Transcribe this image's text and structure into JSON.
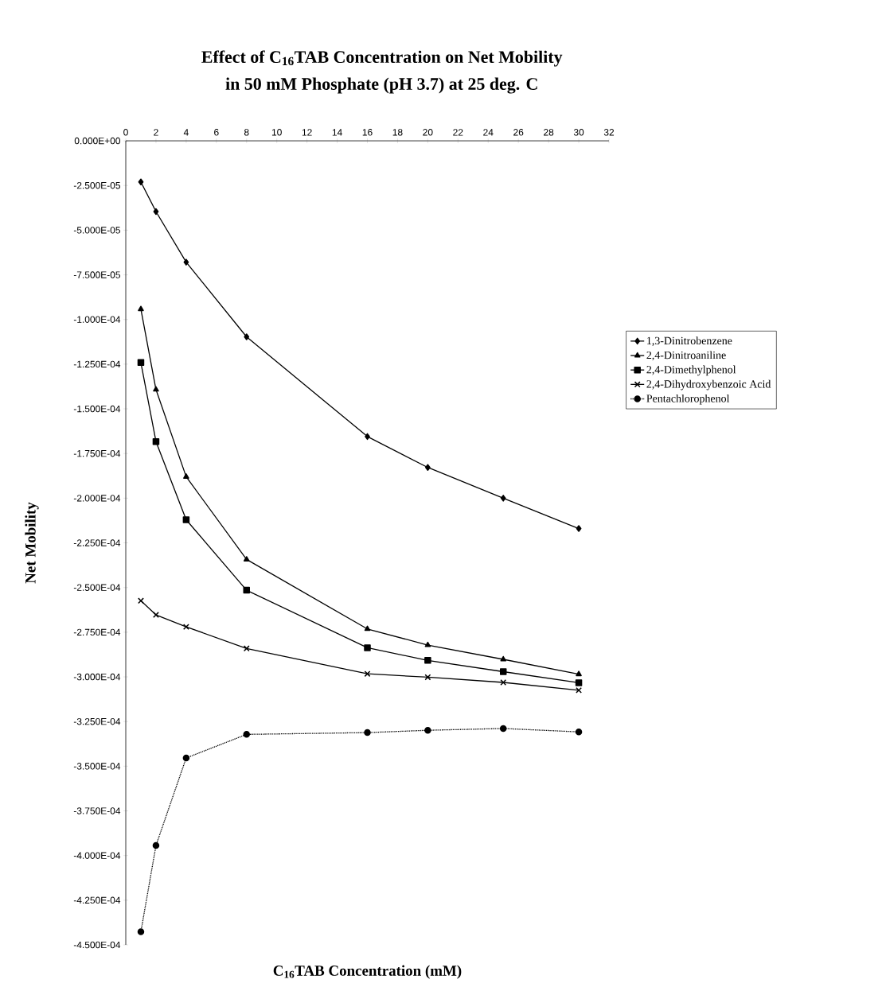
{
  "chart_data": {
    "type": "line",
    "title": "Effect of C$_{16}$TAB Concentration on Net Mobility",
    "subtitle": "in 50 mM Phosphate (pH 3.7) at 25 deg. C",
    "xlabel": "C$_{16}$TAB Concentration (mM)",
    "ylabel": "Net Mobility",
    "x": [
      1,
      2,
      4,
      8,
      16,
      20,
      25,
      30
    ],
    "series": [
      {
        "name": "1,3-Dinitrobenzene",
        "color": "#000000",
        "marker": "diamond",
        "line_style": "solid",
        "values": [
          -2.3e-05,
          -3.96e-05,
          -6.79e-05,
          -0.0001097,
          -0.0001655,
          -0.0001828,
          -0.0002,
          -0.000217
        ]
      },
      {
        "name": "2,4-Dinitroaniline",
        "color": "#000000",
        "marker": "triangle",
        "line_style": "solid",
        "values": [
          -9.42e-05,
          -0.0001392,
          -0.000188,
          -0.0002343,
          -0.0002732,
          -0.0002822,
          -0.0002902,
          -0.0002985
        ]
      },
      {
        "name": "2,4-Dimethylphenol",
        "color": "#000000",
        "marker": "square",
        "line_style": "solid",
        "values": [
          -0.0001241,
          -0.0001683,
          -0.0002121,
          -0.0002515,
          -0.0002837,
          -0.0002908,
          -0.0002971,
          -0.0003033
        ]
      },
      {
        "name": "2,4-Dihydroxybenzoic Acid",
        "color": "#000000",
        "marker": "cross",
        "line_style": "solid",
        "values": [
          -0.0002574,
          -0.0002653,
          -0.000272,
          -0.0002841,
          -0.0002983,
          -0.0003002,
          -0.0003031,
          -0.0003075
        ]
      },
      {
        "name": "Pentachlorophenol",
        "color": "#000000",
        "marker": "circle",
        "line_style": "dotted",
        "values": [
          -0.0004427,
          -0.0003944,
          -0.0003454,
          -0.0003322,
          -0.0003312,
          -0.0003299,
          -0.0003289,
          -0.0003308
        ]
      }
    ],
    "xlim": [
      0,
      32
    ],
    "xticks": [
      0,
      2,
      4,
      6,
      8,
      10,
      12,
      14,
      16,
      18,
      20,
      22,
      24,
      26,
      28,
      30,
      32
    ],
    "ylim": [
      -0.00045,
      0
    ],
    "yticks": [
      {
        "value": 0,
        "label": "0.000E+00"
      },
      {
        "value": -2.5e-05,
        "label": "-2.500E-05"
      },
      {
        "value": -5e-05,
        "label": "-5.000E-05"
      },
      {
        "value": -7.5e-05,
        "label": "-7.500E-05"
      },
      {
        "value": -0.0001,
        "label": "-1.000E-04"
      },
      {
        "value": -0.000125,
        "label": "-1.250E-04"
      },
      {
        "value": -0.00015,
        "label": "-1.500E-04"
      },
      {
        "value": -0.000175,
        "label": "-1.750E-04"
      },
      {
        "value": -0.0002,
        "label": "-2.000E-04"
      },
      {
        "value": -0.000225,
        "label": "-2.250E-04"
      },
      {
        "value": -0.00025,
        "label": "-2.500E-04"
      },
      {
        "value": -0.000275,
        "label": "-2.750E-04"
      },
      {
        "value": -0.0003,
        "label": "-3.000E-04"
      },
      {
        "value": -0.000325,
        "label": "-3.250E-04"
      },
      {
        "value": -0.00035,
        "label": "-3.500E-04"
      },
      {
        "value": -0.000375,
        "label": "-3.750E-04"
      },
      {
        "value": -0.0004,
        "label": "-4.000E-04"
      },
      {
        "value": -0.000425,
        "label": "-4.250E-04"
      },
      {
        "value": -0.00045,
        "label": "-4.500E-04"
      }
    ],
    "legend": "right"
  }
}
